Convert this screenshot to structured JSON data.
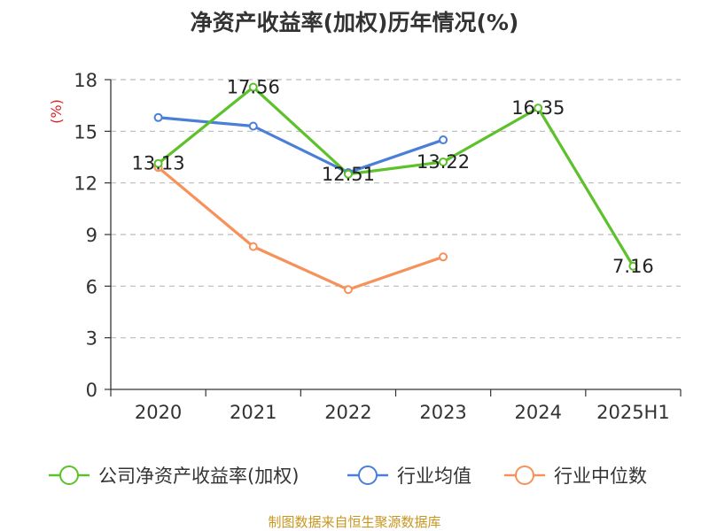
{
  "chart_data": {
    "type": "line",
    "title": "净资产收益率(加权)历年情况(%)",
    "ylabel": "(%)",
    "xlabel": "",
    "ylim": [
      0,
      18
    ],
    "y_ticks": [
      "0",
      "3",
      "6",
      "9",
      "12",
      "15",
      "18"
    ],
    "categories": [
      "2020",
      "2021",
      "2022",
      "2023",
      "2024",
      "2025H1"
    ],
    "grid": true,
    "legend_position": "bottom",
    "series": [
      {
        "name": "公司净资产收益率(加权)",
        "color": "#5cc12a",
        "values": [
          13.13,
          17.56,
          12.51,
          13.22,
          16.35,
          7.16
        ],
        "labels": [
          "13.13",
          "17.56",
          "12.51",
          "13.22",
          "16.35",
          "7.16"
        ]
      },
      {
        "name": "行业均值",
        "color": "#4a7fd8",
        "values": [
          15.8,
          15.3,
          12.6,
          14.5,
          null,
          null
        ]
      },
      {
        "name": "行业中位数",
        "color": "#f6915a",
        "values": [
          12.9,
          8.3,
          5.8,
          7.7,
          null,
          null
        ]
      }
    ],
    "source": "制图数据来自恒生聚源数据库"
  }
}
